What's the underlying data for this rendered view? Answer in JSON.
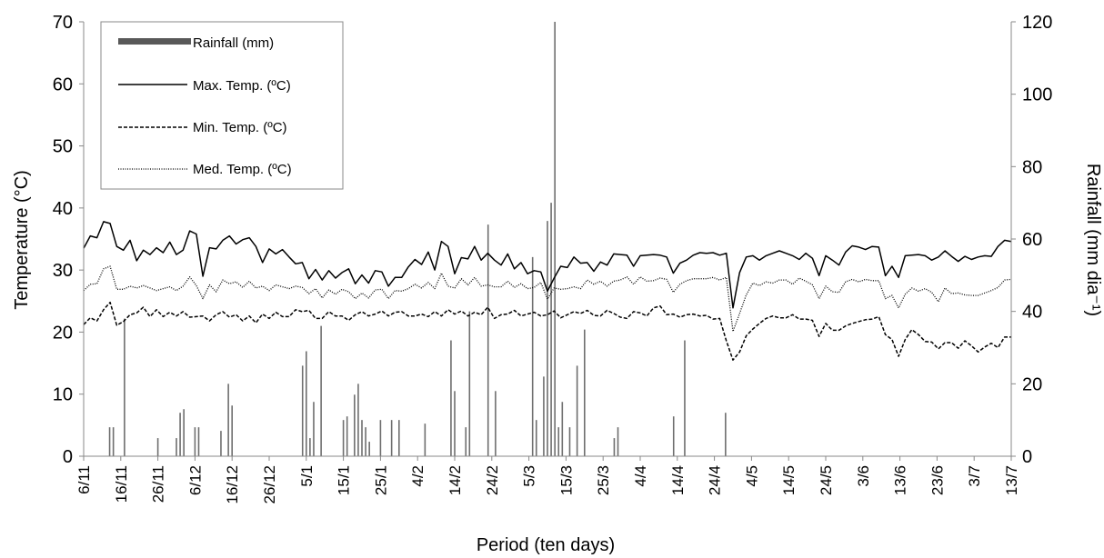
{
  "chart_data": {
    "type": "bar+line",
    "xlabel": "Period (ten days)",
    "ylabel_left": "Temperature (°C)",
    "ylabel_right": "Rainfall (mm dia⁻¹)",
    "left_axis": {
      "range": [
        0,
        70
      ],
      "ticks": [
        "0",
        "10",
        "20",
        "30",
        "40",
        "50",
        "60",
        "70"
      ]
    },
    "right_axis": {
      "range": [
        0,
        120
      ],
      "ticks": [
        "0",
        "20",
        "40",
        "60",
        "80",
        "100",
        "120"
      ]
    },
    "x_ticks": [
      "6/11",
      "16/11",
      "26/11",
      "6/12",
      "16/12",
      "26/12",
      "5/1",
      "15/1",
      "25/1",
      "4/2",
      "14/2",
      "24/2",
      "5/3",
      "15/3",
      "25/3",
      "4/4",
      "14/4",
      "24/4",
      "4/5",
      "14/5",
      "24/5",
      "3/6",
      "13/6",
      "23/6",
      "3/7",
      "13/7"
    ],
    "x_domain_days": [
      0,
      250
    ],
    "grid": false,
    "legend": {
      "position": "top-left",
      "entries": [
        {
          "label": "Rainfall (mm)",
          "style": "bar"
        },
        {
          "label": "Max. Temp. (ºC)",
          "style": "solid"
        },
        {
          "label": "Min. Temp. (ºC)",
          "style": "dashed"
        },
        {
          "label": "Med. Temp. (ºC)",
          "style": "dotted"
        }
      ]
    },
    "rainfall": [
      {
        "day": 7,
        "value": 8
      },
      {
        "day": 8,
        "value": 8
      },
      {
        "day": 11,
        "value": 38
      },
      {
        "day": 20,
        "value": 5
      },
      {
        "day": 25,
        "value": 5
      },
      {
        "day": 26,
        "value": 12
      },
      {
        "day": 27,
        "value": 13
      },
      {
        "day": 30,
        "value": 8
      },
      {
        "day": 31,
        "value": 8
      },
      {
        "day": 37,
        "value": 7
      },
      {
        "day": 39,
        "value": 20
      },
      {
        "day": 40,
        "value": 14
      },
      {
        "day": 59,
        "value": 25
      },
      {
        "day": 60,
        "value": 29
      },
      {
        "day": 61,
        "value": 5
      },
      {
        "day": 62,
        "value": 15
      },
      {
        "day": 64,
        "value": 36
      },
      {
        "day": 70,
        "value": 10
      },
      {
        "day": 71,
        "value": 11
      },
      {
        "day": 73,
        "value": 17
      },
      {
        "day": 74,
        "value": 20
      },
      {
        "day": 75,
        "value": 10
      },
      {
        "day": 76,
        "value": 8
      },
      {
        "day": 77,
        "value": 4
      },
      {
        "day": 80,
        "value": 10
      },
      {
        "day": 83,
        "value": 10
      },
      {
        "day": 85,
        "value": 10
      },
      {
        "day": 92,
        "value": 9
      },
      {
        "day": 99,
        "value": 32
      },
      {
        "day": 100,
        "value": 18
      },
      {
        "day": 103,
        "value": 8
      },
      {
        "day": 104,
        "value": 40
      },
      {
        "day": 109,
        "value": 64
      },
      {
        "day": 111,
        "value": 18
      },
      {
        "day": 121,
        "value": 55
      },
      {
        "day": 122,
        "value": 10
      },
      {
        "day": 124,
        "value": 22
      },
      {
        "day": 125,
        "value": 65
      },
      {
        "day": 126,
        "value": 70
      },
      {
        "day": 127,
        "value": 120
      },
      {
        "day": 128,
        "value": 8
      },
      {
        "day": 129,
        "value": 15
      },
      {
        "day": 131,
        "value": 8
      },
      {
        "day": 133,
        "value": 25
      },
      {
        "day": 135,
        "value": 35
      },
      {
        "day": 143,
        "value": 5
      },
      {
        "day": 144,
        "value": 8
      },
      {
        "day": 159,
        "value": 11
      },
      {
        "day": 162,
        "value": 32
      },
      {
        "day": 173,
        "value": 12
      }
    ],
    "series": [
      {
        "name": "Max. Temp. (ºC)",
        "style": "solid",
        "values": [
          33.5,
          35.5,
          35.2,
          37.8,
          37.5,
          33.8,
          33.2,
          34.8,
          31.5,
          33.2,
          32.5,
          33.6,
          32.8,
          34.5,
          32.5,
          33.2,
          36.3,
          35.8,
          29,
          33.6,
          33.4,
          34.8,
          35.5,
          34.2,
          34.9,
          35.2,
          33.8,
          31.2,
          33.4,
          32.6,
          33.3,
          32.1,
          31,
          31.2,
          28.6,
          30.1,
          28.4,
          29.9,
          28.7,
          29.6,
          30.2,
          27.8,
          29.2,
          27.9,
          29.9,
          29.7,
          27.4,
          28.8,
          28.8,
          30.5,
          31.7,
          30.9,
          32.9,
          30,
          34.6,
          33.8,
          29.4,
          32,
          31.8,
          33.8,
          31.6,
          32.7,
          31.6,
          30.8,
          32.6,
          30.2,
          31.2,
          29.4,
          29.9,
          29.7,
          26.6,
          28.7,
          30.6,
          30.4,
          32.1,
          31.1,
          31.2,
          29.8,
          31.3,
          30.8,
          32.6,
          32.5,
          32.4,
          30.6,
          32.3,
          32.4,
          32.5,
          32.4,
          32.1,
          29.5,
          31.1,
          31.6,
          32.4,
          32.8,
          32.7,
          32.8,
          32.4,
          32.7,
          23.9,
          29.6,
          32.1,
          32.3,
          31.6,
          32.3,
          32.7,
          33.1,
          32.7,
          32.3,
          31.7,
          32.7,
          31.9,
          29.1,
          32.3,
          31.6,
          30.8,
          32.9,
          33.9,
          33.7,
          33.3,
          33.8,
          33.7,
          29.1,
          30.6,
          28.8,
          32.3,
          32.4,
          32.5,
          32.3,
          31.6,
          32.1,
          33.1,
          32.2,
          31.4,
          32.2,
          31.7,
          32.1,
          32.3,
          32.2,
          33.8,
          34.8,
          34.6
        ]
      },
      {
        "name": "Min. Temp. (ºC)",
        "style": "dashed",
        "values": [
          21.2,
          22.3,
          21.8,
          23.6,
          24.8,
          21.1,
          21.7,
          22.8,
          23.1,
          24,
          22.5,
          23.6,
          22.5,
          23.2,
          22.6,
          23.3,
          22.4,
          22.5,
          22.6,
          21.8,
          22.8,
          23.3,
          22.4,
          22.8,
          21.8,
          22.6,
          21.5,
          22.9,
          22.2,
          23.2,
          22.5,
          22.5,
          23.6,
          23.3,
          23.5,
          22.2,
          22.2,
          23.3,
          22.6,
          22.6,
          21.9,
          22.8,
          23.3,
          22.6,
          22.9,
          23.4,
          22.6,
          23.2,
          23.3,
          22.6,
          22.6,
          22.9,
          22.5,
          23.3,
          22.6,
          23.6,
          22.9,
          23.4,
          22.6,
          23.2,
          22.8,
          24,
          22.2,
          22.8,
          22.9,
          23.5,
          22.6,
          22.9,
          23.2,
          22.6,
          22.8,
          23.4,
          22.3,
          22.8,
          23.3,
          23,
          23.5,
          22.7,
          22.6,
          23.5,
          23,
          22.4,
          22.2,
          23.3,
          23.1,
          22.6,
          23.9,
          24.2,
          22.8,
          22.9,
          22.4,
          22.8,
          22.9,
          22.6,
          22.7,
          22.1,
          22.2,
          18.6,
          15.5,
          16.8,
          19.4,
          20.5,
          21.4,
          22.2,
          22.6,
          22.3,
          22.3,
          22.8,
          22.1,
          22.1,
          21.9,
          19.3,
          21.4,
          20.3,
          20.3,
          21,
          21.4,
          21.7,
          22,
          22.1,
          22.5,
          19.6,
          18.8,
          16.1,
          18.8,
          20.4,
          19.6,
          18.5,
          18.4,
          17.3,
          18.3,
          18.3,
          17.4,
          18.6,
          17.8,
          16.8,
          17.6,
          18.2,
          17.5,
          19.2,
          19.2
        ]
      },
      {
        "name": "Med. Temp. (ºC)",
        "style": "dotted",
        "values": [
          26.7,
          27.7,
          27.8,
          30.2,
          30.6,
          26.9,
          26.9,
          27.4,
          27.1,
          27.5,
          27.1,
          26.7,
          27,
          27.3,
          26.7,
          27.4,
          28.9,
          27.5,
          25.4,
          27.6,
          26.5,
          28.4,
          27.8,
          28.1,
          27.2,
          28.2,
          27.1,
          27.4,
          26.7,
          27.6,
          27.3,
          27,
          27.4,
          27.2,
          26.2,
          27,
          25.5,
          26.8,
          26.1,
          26.9,
          26.5,
          25.4,
          26.3,
          25.5,
          26.8,
          26.9,
          25.4,
          26.7,
          26.6,
          27,
          27.7,
          27.1,
          28,
          27,
          29.5,
          27.4,
          27.1,
          28.6,
          27.6,
          28.8,
          27.4,
          27.6,
          27.3,
          27.3,
          28.2,
          27.2,
          27.8,
          27,
          27.2,
          28,
          25.3,
          27.1,
          26.9,
          27,
          27.3,
          27,
          28.4,
          27.7,
          28.2,
          27.4,
          28.2,
          28.4,
          28.9,
          27.7,
          28.9,
          28.2,
          28.3,
          28.7,
          28.5,
          26.4,
          27.7,
          28.3,
          28.6,
          28.6,
          28.6,
          28.8,
          28.4,
          28.8,
          20.1,
          23,
          26,
          27.9,
          27.5,
          28.1,
          27.9,
          28.4,
          28.4,
          27.7,
          28.7,
          28.2,
          27.6,
          25.4,
          27.4,
          26.5,
          26.4,
          28.1,
          28.5,
          28.1,
          28.5,
          28.3,
          28.3,
          25.4,
          25.9,
          23.9,
          26.1,
          27.1,
          26.6,
          27,
          26.4,
          24.9,
          27.1,
          26.2,
          26.3,
          26,
          25.9,
          25.9,
          26.3,
          26.7,
          27.2,
          28.4,
          28.5
        ]
      }
    ]
  }
}
